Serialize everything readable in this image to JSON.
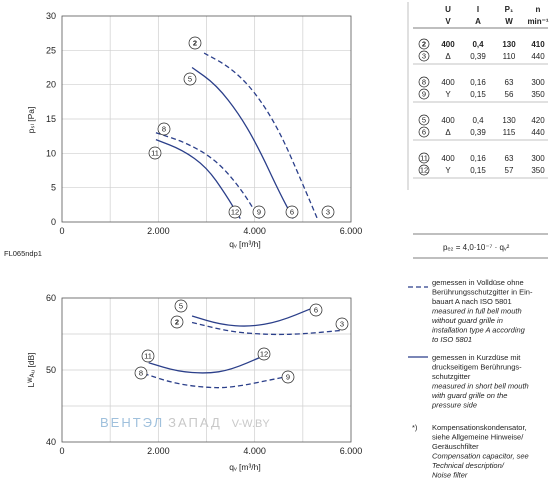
{
  "chart_data": [
    {
      "type": "line",
      "title": "",
      "xlabel": "qᵥ [m³/h]",
      "ylabel": "pₛₗ [Pa]",
      "xlim": [
        0,
        6000
      ],
      "ylim": [
        0,
        30
      ],
      "x_ticks": [
        "0",
        "2.000",
        "4.000",
        "6.000"
      ],
      "y_ticks": [
        "0",
        "5",
        "10",
        "15",
        "20",
        "25",
        "30"
      ],
      "grid": true,
      "code": "FL065ndp1",
      "series": [
        {
          "name": "2",
          "style": "dashed",
          "x": [
            2950,
            3500,
            4000,
            4500,
            5000,
            5300
          ],
          "y": [
            24.6,
            22.5,
            19.0,
            13.5,
            5.5,
            0.5
          ]
        },
        {
          "name": "5",
          "style": "solid",
          "x": [
            2700,
            3200,
            3700,
            4100,
            4500,
            4800
          ],
          "y": [
            22.5,
            20.0,
            15.5,
            10.5,
            4.5,
            0.5
          ]
        },
        {
          "name": "3",
          "style": "dashed",
          "x": [
            5500
          ],
          "y": [
            1.5
          ]
        },
        {
          "name": "6",
          "style": "solid",
          "x": [
            4800
          ],
          "y": [
            1.5
          ]
        },
        {
          "name": "8",
          "style": "dashed",
          "x": [
            1950,
            2600,
            3200,
            3700,
            4100
          ],
          "y": [
            13.0,
            11.5,
            9.0,
            5.0,
            0.5
          ]
        },
        {
          "name": "11",
          "style": "solid",
          "x": [
            1950,
            2500,
            3000,
            3400,
            3700
          ],
          "y": [
            12.0,
            10.5,
            8.0,
            4.0,
            0.5
          ]
        },
        {
          "name": "9",
          "style": "dashed",
          "x": [
            4100
          ],
          "y": [
            1.5
          ]
        },
        {
          "name": "12",
          "style": "solid",
          "x": [
            3600
          ],
          "y": [
            1.5
          ]
        }
      ],
      "labels": {
        "2": "2",
        "3": "3",
        "5": "5",
        "6": "6",
        "8": "8",
        "9": "9",
        "11": "11",
        "12": "12"
      }
    },
    {
      "type": "line",
      "title": "",
      "xlabel": "qᵥ [m³/h]",
      "ylabel": "Lᵂᴀᵤ [dB]",
      "xlim": [
        0,
        6000
      ],
      "ylim": [
        40,
        60
      ],
      "x_ticks": [
        "0",
        "2.000",
        "4.000",
        "6.000"
      ],
      "y_ticks": [
        "40",
        "50",
        "60"
      ],
      "grid": true,
      "series": [
        {
          "name": "5/6",
          "style": "solid",
          "x": [
            2700,
            3300,
            3900,
            4500,
            5200
          ],
          "y": [
            57.5,
            56.3,
            56.0,
            56.7,
            58.6
          ]
        },
        {
          "name": "2/3",
          "style": "dashed",
          "x": [
            2700,
            3500,
            4300,
            5000,
            5800
          ],
          "y": [
            56.6,
            55.3,
            54.9,
            55.0,
            55.5
          ]
        },
        {
          "name": "11/12",
          "style": "solid",
          "x": [
            1800,
            2400,
            3000,
            3500,
            4200
          ],
          "y": [
            51.0,
            49.8,
            49.5,
            50.0,
            52.0
          ]
        },
        {
          "name": "8/9",
          "style": "dashed",
          "x": [
            1700,
            2300,
            2900,
            3500,
            4600
          ],
          "y": [
            49.5,
            48.2,
            47.6,
            47.5,
            49.0
          ]
        }
      ],
      "labels": {
        "2": "2",
        "3": "3",
        "5": "5",
        "6": "6",
        "8": "8",
        "9": "9",
        "11": "11",
        "12": "12"
      }
    }
  ],
  "table": {
    "headers": [
      "U",
      "I",
      "P₁",
      "n"
    ],
    "units": [
      "V",
      "A",
      "W",
      "min⁻¹"
    ],
    "groups": [
      [
        {
          "id": "2",
          "u": "400",
          "i": "0,4",
          "p": "130",
          "n": "410",
          "bold": true
        },
        {
          "id": "3",
          "u": "Δ",
          "i": "0,39",
          "p": "110",
          "n": "440",
          "bold": false
        }
      ],
      [
        {
          "id": "8",
          "u": "400",
          "i": "0,16",
          "p": "63",
          "n": "300",
          "bold": false
        },
        {
          "id": "9",
          "u": "Y",
          "i": "0,15",
          "p": "56",
          "n": "350",
          "bold": false
        }
      ],
      [
        {
          "id": "5",
          "u": "400",
          "i": "0,4",
          "p": "130",
          "n": "420",
          "bold": false
        },
        {
          "id": "6",
          "u": "Δ",
          "i": "0,39",
          "p": "115",
          "n": "440",
          "bold": false
        }
      ],
      [
        {
          "id": "11",
          "u": "400",
          "i": "0,16",
          "p": "63",
          "n": "300",
          "bold": false
        },
        {
          "id": "12",
          "u": "Y",
          "i": "0,15",
          "p": "57",
          "n": "350",
          "bold": false
        }
      ]
    ]
  },
  "formula": "pₑ₂ = 4,0·10⁻⁷ · qᵥ²",
  "legend": {
    "dashed": [
      "gemessen in Volldüse ohne",
      "Berührungsschutzgitter in Ein-",
      "bauart A nach ISO 5801"
    ],
    "dashed_en": [
      "measured in full bell mouth",
      "without guard grille in",
      "installation type A according",
      "to ISO 5801"
    ],
    "solid": [
      "gemessen in Kurzdüse mit",
      "druckseitigem Berührungs-",
      "schutzgitter"
    ],
    "solid_en": [
      "measured in short bell mouth",
      "with guard grille on the",
      "pressure side"
    ],
    "note_mark": "*)",
    "note": [
      "Kompensationskondensator,",
      "siehe Allgemeine Hinweise/",
      "Geräuschfilter"
    ],
    "note_en": [
      "Compensation capacitor, see",
      "Technical description/",
      "Noise filter"
    ]
  },
  "watermark": {
    "part1": "ВЕНТЭЛ",
    "part2": "ЗАПАД",
    "part3": "V-W.BY"
  }
}
